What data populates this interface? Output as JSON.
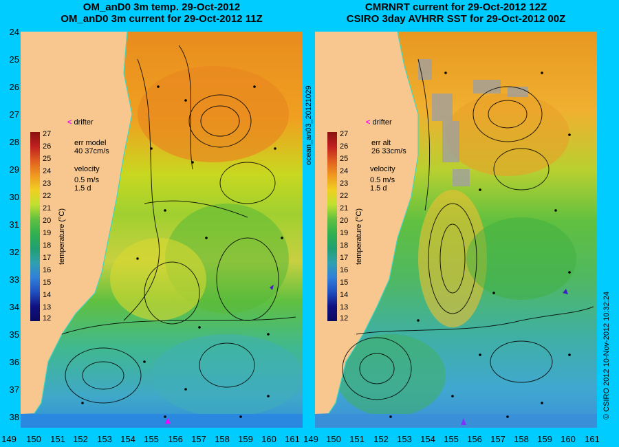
{
  "left_panel": {
    "title_line1": "OM_anD0 3m temp. 29-Oct-2012",
    "title_line2": "OM_anD0 3m current for 29-Oct-2012 11Z",
    "err_label": "err model",
    "err_value": "40 37cm/s",
    "velocity_label": "velocity",
    "velocity_scale": "0.5 m/s",
    "velocity_days": "1.5 d",
    "drifter_label": "drifter"
  },
  "right_panel": {
    "title_line1": "CMRNRT current for 29-Oct-2012 12Z",
    "title_line2": "CSIRO 3day AVHRR SST for 29-Oct-2012 00Z",
    "err_label": "err alt",
    "err_value": "26 33cm/s",
    "velocity_label": "velocity",
    "velocity_scale": "0.5 m/s",
    "velocity_days": "1.5 d",
    "drifter_label": "drifter"
  },
  "colorbar": {
    "label": "temperature (°C)",
    "ticks": [
      "27",
      "26",
      "25",
      "24",
      "23",
      "22",
      "21",
      "20",
      "19",
      "18",
      "17",
      "16",
      "15",
      "14",
      "13",
      "12"
    ]
  },
  "y_axis": [
    "24",
    "25",
    "26",
    "27",
    "28",
    "29",
    "30",
    "31",
    "32",
    "33",
    "34",
    "35",
    "36",
    "37",
    "38"
  ],
  "x_axis": [
    "149",
    "150",
    "151",
    "152",
    "153",
    "154",
    "155",
    "156",
    "157",
    "158",
    "159",
    "160",
    "161"
  ],
  "x_axis_right_first": "149",
  "side_label_middle": "ocean_an03_20121029",
  "side_label_right": "© CSIRO 2012   10-Nov-2012 10:32:24",
  "colors": {
    "background": "#00ccff",
    "land": "#f7c78f",
    "drifter_marker": "#ff00ff"
  }
}
